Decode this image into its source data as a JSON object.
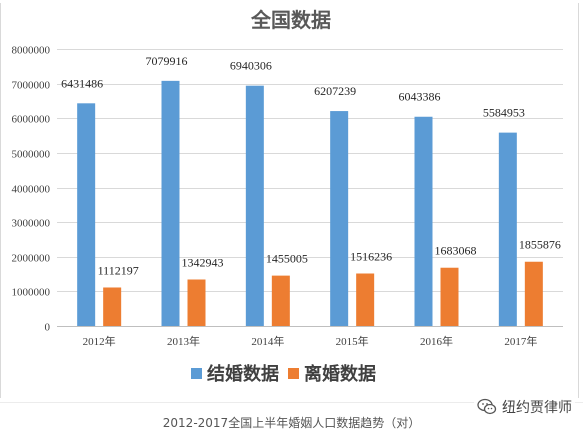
{
  "chart_data": {
    "type": "bar",
    "title": "全国数据",
    "categories": [
      "2012年",
      "2013年",
      "2014年",
      "2015年",
      "2016年",
      "2017年"
    ],
    "series": [
      {
        "name": "结婚数据",
        "color": "#5b9bd5",
        "values": [
          6431486,
          7079916,
          6940306,
          6207239,
          6043386,
          5584953
        ]
      },
      {
        "name": "离婚数据",
        "color": "#ed7d31",
        "values": [
          1112197,
          1342943,
          1455005,
          1516236,
          1683068,
          1855876
        ]
      }
    ],
    "ylim": [
      0,
      8000000
    ],
    "yticks": [
      0,
      1000000,
      2000000,
      3000000,
      4000000,
      5000000,
      6000000,
      7000000,
      8000000
    ],
    "grid": true,
    "legend_position": "bottom"
  },
  "caption": "2012-2017全国上半年婚姻人口数据趋势（对）",
  "watermark": {
    "icon": "wechat-icon",
    "text": "纽约贾律师"
  }
}
